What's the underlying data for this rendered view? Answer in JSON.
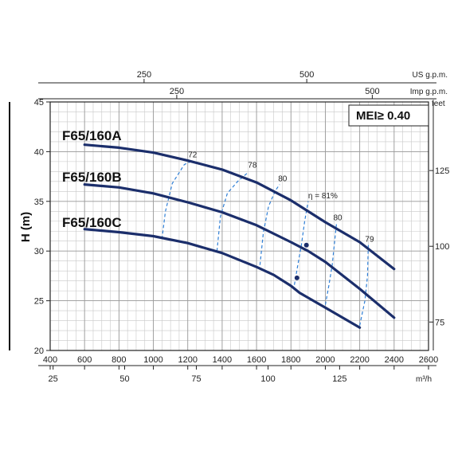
{
  "chart_data": {
    "type": "line",
    "mei_label": "MEI≥ 0.40",
    "ylabel": "H (m)",
    "ylim": [
      20,
      45
    ],
    "y_ticks": [
      "20",
      "25",
      "30",
      "35",
      "40",
      "45"
    ],
    "xlim": [
      400,
      2600
    ],
    "x_ticks": [
      "400",
      "600",
      "800",
      "1000",
      "1200",
      "1400",
      "1600",
      "1800",
      "2000",
      "2200",
      "2400",
      "2600"
    ],
    "x_lpm_unit": "",
    "axes_top": [
      {
        "unit": "US g.p.m.",
        "ticks": [
          {
            "label": "250",
            "x": 946
          },
          {
            "label": "500",
            "x": 1892
          }
        ]
      },
      {
        "unit": "Imp g.p.m.",
        "ticks": [
          {
            "label": "250",
            "x": 1136
          },
          {
            "label": "500",
            "x": 2273
          }
        ]
      }
    ],
    "axis_bottom2": {
      "unit": "m³/h",
      "ticks": [
        {
          "label": "25",
          "x": 417
        },
        {
          "label": "50",
          "x": 833
        },
        {
          "label": "75",
          "x": 1250
        },
        {
          "label": "100",
          "x": 1667
        },
        {
          "label": "125",
          "x": 2083
        }
      ]
    },
    "axis_right": {
      "unit": "feet",
      "ticks": [
        {
          "label": "75",
          "y": 22.86
        },
        {
          "label": "100",
          "y": 30.48
        },
        {
          "label": "125",
          "y": 38.1
        }
      ]
    },
    "series": [
      {
        "name": "F65/160A",
        "x": [
          600,
          800,
          1000,
          1200,
          1400,
          1600,
          1800,
          2000,
          2200,
          2400
        ],
        "y": [
          40.7,
          40.4,
          39.9,
          39.1,
          38.2,
          36.9,
          35.1,
          32.9,
          30.9,
          28.2
        ]
      },
      {
        "name": "F65/160B",
        "x": [
          600,
          800,
          1000,
          1200,
          1400,
          1600,
          1800,
          1900,
          2000,
          2200,
          2400
        ],
        "y": [
          36.7,
          36.4,
          35.8,
          34.9,
          33.9,
          32.6,
          30.9,
          30.0,
          28.9,
          26.2,
          23.3
        ]
      },
      {
        "name": "F65/160C",
        "x": [
          600,
          800,
          1000,
          1200,
          1400,
          1600,
          1700,
          1800,
          1850,
          2000,
          2200
        ],
        "y": [
          32.2,
          31.9,
          31.5,
          30.8,
          29.8,
          28.4,
          27.6,
          26.5,
          25.8,
          24.3,
          22.3
        ]
      }
    ],
    "efficiency": [
      {
        "label": "72",
        "x": [
          1050,
          1070,
          1110,
          1180,
          1230
        ],
        "y": [
          31.2,
          34.0,
          36.8,
          38.7,
          39.1
        ]
      },
      {
        "label": "78",
        "x": [
          1370,
          1390,
          1430,
          1490,
          1550
        ],
        "y": [
          30.0,
          33.5,
          35.8,
          37.0,
          37.9
        ]
      },
      {
        "label": "80",
        "x": [
          1620,
          1640,
          1670,
          1710,
          1735
        ],
        "y": [
          28.6,
          31.9,
          34.5,
          36.1,
          36.7
        ]
      },
      {
        "label": "η = 81%",
        "x": [
          1820,
          1840,
          1860,
          1880,
          1900
        ],
        "y": [
          26.6,
          28.6,
          30.5,
          33.0,
          35.0
        ]
      },
      {
        "label": "80",
        "x": [
          2000,
          2020,
          2040,
          2065
        ],
        "y": [
          24.6,
          26.5,
          28.6,
          32.8
        ]
      },
      {
        "label": "79",
        "x": [
          2200,
          2230,
          2245,
          2250
        ],
        "y": [
          22.5,
          25.0,
          27.5,
          30.6
        ]
      }
    ],
    "markers": [
      {
        "series": "F65/160B",
        "x": 1890,
        "y": 30.6
      },
      {
        "series": "F65/160C",
        "x": 1835,
        "y": 27.3
      }
    ],
    "grid": true
  }
}
